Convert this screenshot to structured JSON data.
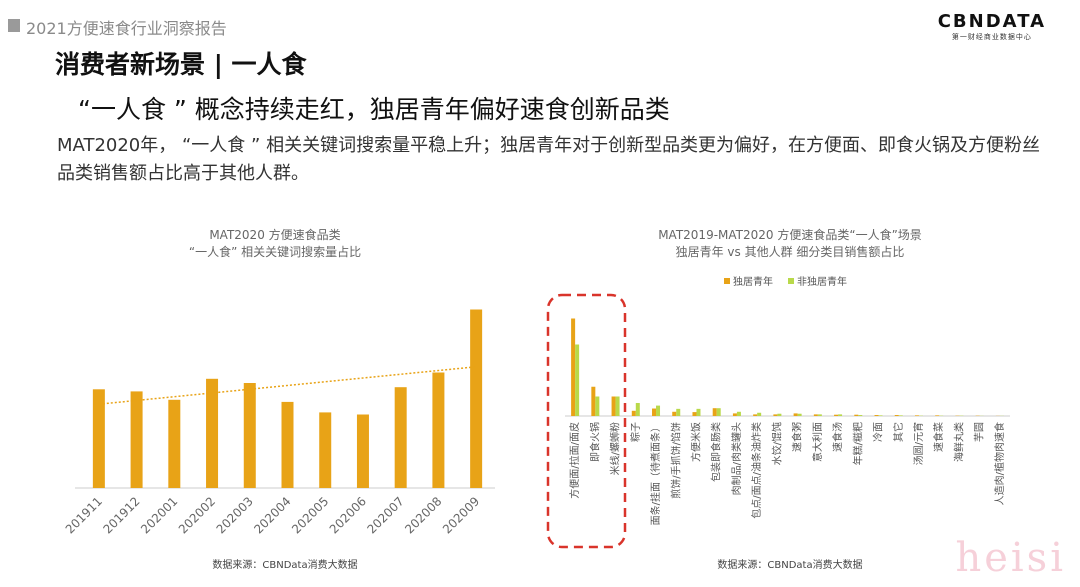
{
  "header": {
    "report_title": "2021方便速食行业洞察报告",
    "logo_text": "CBNDATA",
    "logo_sub": "第一财经商业数据中心"
  },
  "section_title": "消费者新场景 | 一人食",
  "headline": "“一人食 ” 概念持续走红，独居青年偏好速食创新品类",
  "description": "MAT2020年， “一人食 ” 相关关键词搜索量平稳上升；独居青年对于创新型品类更为偏好，在方便面、即食火锅及方便粉丝品类销售额占比高于其他人群。",
  "watermark": "heisi",
  "colors": {
    "orange": "#E8A317",
    "green": "#B9D94A",
    "dashed_box": "#D9342B",
    "trend": "#E8A317"
  },
  "chart_data": [
    {
      "type": "bar",
      "title": "MAT2020 方便速食品类",
      "subtitle": "“一人食” 相关关键词搜索量占比",
      "categories": [
        "201911",
        "201912",
        "202001",
        "202002",
        "202003",
        "202004",
        "202005",
        "202006",
        "202007",
        "202008",
        "202009"
      ],
      "values": [
        47,
        46,
        42,
        52,
        50,
        41,
        36,
        35,
        48,
        55,
        85
      ],
      "ylim": [
        0,
        100
      ],
      "trendline": true,
      "source": "数据来源：CBNData消费大数据"
    },
    {
      "type": "bar",
      "title": "MAT2019-MAT2020 方便速食品类“一人食”场景",
      "subtitle": "独居青年 vs 其他人群 细分类目销售额占比",
      "legend_position": "top",
      "categories": [
        "方便面/拉面/面皮",
        "即食火锅",
        "米线/螺蛳粉",
        "粽子",
        "面条/挂面（待煮面条）",
        "煎饼/手抓饼/馅饼",
        "方便米饭",
        "包装即食肠类",
        "肉制品/肉类罐头",
        "包点/面点/油条油炸类",
        "水饺/馄饨",
        "速食粥",
        "意大利面",
        "速食汤",
        "年糕/糍粑",
        "冷面",
        "其它",
        "汤圆/元宵",
        "速食菜",
        "海鲜丸类",
        "芋圆",
        "人造肉/植物肉速食"
      ],
      "series": [
        {
          "name": "独居青年",
          "values": [
            30,
            9,
            6,
            1.6,
            2.3,
            1.3,
            1.2,
            2.4,
            0.8,
            0.5,
            0.5,
            0.8,
            0.5,
            0.4,
            0.4,
            0.3,
            0.3,
            0.2,
            0.2,
            0.1,
            0.1,
            0.05
          ]
        },
        {
          "name": "非独居青年",
          "values": [
            22,
            6,
            6,
            4,
            3.2,
            2.2,
            2.2,
            2.4,
            1.3,
            1,
            0.7,
            0.7,
            0.5,
            0.5,
            0.3,
            0.2,
            0.2,
            0.1,
            0.1,
            0.1,
            0.05,
            0.05
          ]
        }
      ],
      "ylim": [
        0,
        40
      ],
      "highlight": [
        "方便面/拉面/面皮",
        "即食火锅",
        "米线/螺蛳粉"
      ],
      "source": "数据来源：CBNData消费大数据"
    }
  ]
}
